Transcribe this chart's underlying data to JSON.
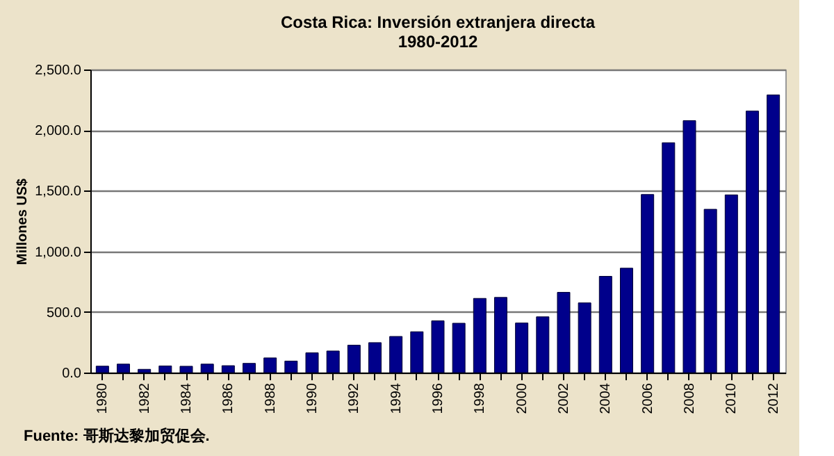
{
  "chart_data": {
    "type": "bar",
    "title": "Costa Rica: Inversión extranjera directa\n1980-2012",
    "ylabel": "Millones US$",
    "categories": [
      "1980",
      null,
      "1982",
      null,
      "1984",
      null,
      "1986",
      null,
      "1988",
      null,
      "1990",
      null,
      "1992",
      null,
      "1994",
      null,
      "1996",
      null,
      "1998",
      null,
      "2000",
      null,
      "2002",
      null,
      "2004",
      null,
      "2006",
      null,
      "2008",
      null,
      "2010",
      null,
      "2012"
    ],
    "values": [
      53,
      70,
      27,
      55,
      52,
      70,
      57,
      76,
      121,
      95,
      163,
      178,
      226,
      247,
      298,
      337,
      427,
      407,
      612,
      620,
      409,
      460,
      662,
      575,
      794,
      861,
      1469,
      1896,
      2078,
      1347,
      1466,
      2157,
      2290
    ],
    "color": "#00008b",
    "ylim": [
      0,
      2500
    ],
    "yticks": [
      {
        "value": 0,
        "label": "0.0"
      },
      {
        "value": 500,
        "label": "500.0"
      },
      {
        "value": 1000,
        "label": "1,000.0"
      },
      {
        "value": 1500,
        "label": "1,500.0"
      },
      {
        "value": 2000,
        "label": "2,000.0"
      },
      {
        "value": 2500,
        "label": "2,500.0"
      }
    ],
    "grid": "y",
    "annotations": [
      "Fuente: 哥斯达黎加贸促会."
    ]
  }
}
